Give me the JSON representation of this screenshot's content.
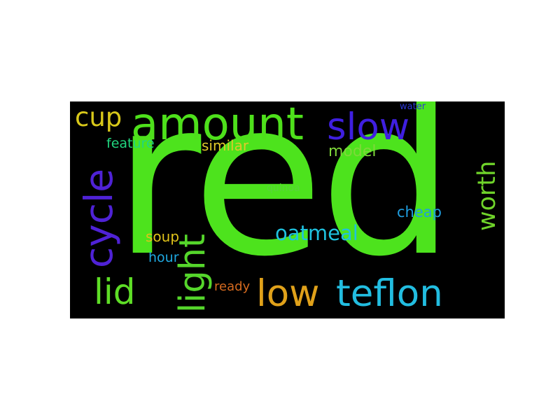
{
  "cloud": {
    "background": "#000000",
    "words": {
      "red": {
        "text": "red",
        "color": "#4de31d"
      },
      "amount": {
        "text": "amount",
        "color": "#4ee01b"
      },
      "slow": {
        "text": "slow",
        "color": "#3f1fe0"
      },
      "cup": {
        "text": "cup",
        "color": "#d8c81a"
      },
      "cycle": {
        "text": "cycle",
        "color": "#4f22d6"
      },
      "light": {
        "text": "light",
        "color": "#55d62b"
      },
      "worth": {
        "text": "worth",
        "color": "#6fd32a"
      },
      "lid": {
        "text": "lid",
        "color": "#5ede26"
      },
      "low": {
        "text": "low",
        "color": "#e0a11a"
      },
      "teflon": {
        "text": "teflon",
        "color": "#22bde0"
      },
      "oatmeal": {
        "text": "oatmeal",
        "color": "#1fc2df"
      },
      "feature": {
        "text": "feature",
        "color": "#21d67f"
      },
      "similar": {
        "text": "similar",
        "color": "#e0c82a"
      },
      "model": {
        "text": "model",
        "color": "#7ed83a"
      },
      "cheap": {
        "text": "cheap",
        "color": "#1f9ee0"
      },
      "soup": {
        "text": "soup",
        "color": "#e0c21a"
      },
      "hour": {
        "text": "hour",
        "color": "#1fa8e0"
      },
      "ready": {
        "text": "ready",
        "color": "#d56a1f"
      },
      "quinoa": {
        "text": "quinoa",
        "color": "#59d33d"
      },
      "water": {
        "text": "water",
        "color": "#2c37d6"
      }
    }
  }
}
